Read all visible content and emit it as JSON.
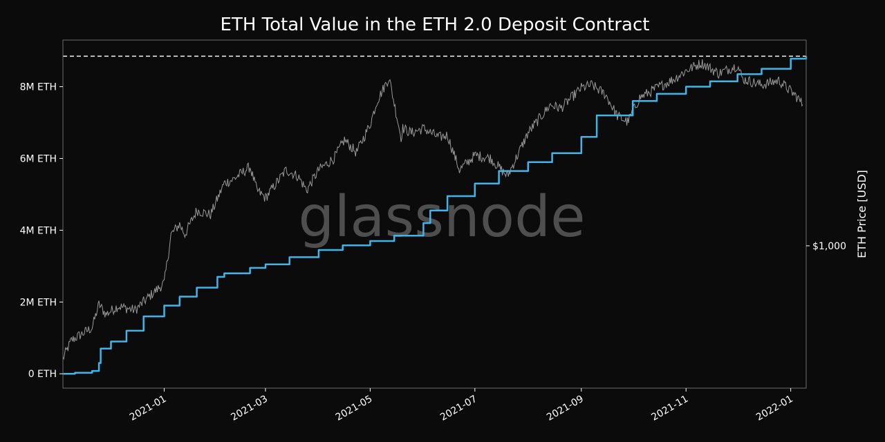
{
  "chart_data": {
    "type": "line",
    "title": "ETH Total Value in the ETH 2.0 Deposit Contract",
    "watermark": "glassnode",
    "x_tick_labels": [
      "2021-01",
      "2021-03",
      "2021-05",
      "2021-07",
      "2021-09",
      "2021-11",
      "2022-01"
    ],
    "x_range": [
      "2020-11-03",
      "2022-01-10"
    ],
    "y_left": {
      "range": [
        -400000,
        9300000
      ],
      "ticks": [
        0,
        2000000,
        4000000,
        6000000,
        8000000
      ],
      "tick_labels": [
        "0 ETH",
        "2M ETH",
        "4M ETH",
        "6M ETH",
        "8M ETH"
      ]
    },
    "y_right": {
      "label": "ETH Price [USD]",
      "scale": "log",
      "range": [
        300,
        5700
      ],
      "ticks": [
        1000
      ],
      "tick_labels": [
        "$1,000"
      ]
    },
    "reference_line": {
      "value": 8850000,
      "style": "dashed",
      "color": "#ffffff"
    },
    "grid": false,
    "series": [
      {
        "axis": "left",
        "color": "#3fb6ea",
        "x": [
          "2020-11-03",
          "2020-11-10",
          "2020-11-20",
          "2020-11-24",
          "2020-11-25",
          "2020-12-01",
          "2020-12-10",
          "2020-12-20",
          "2021-01-01",
          "2021-01-10",
          "2021-01-20",
          "2021-02-01",
          "2021-02-05",
          "2021-02-20",
          "2021-03-01",
          "2021-03-15",
          "2021-04-01",
          "2021-04-15",
          "2021-05-01",
          "2021-05-15",
          "2021-06-01",
          "2021-06-05",
          "2021-06-15",
          "2021-07-01",
          "2021-07-15",
          "2021-08-01",
          "2021-08-15",
          "2021-09-01",
          "2021-09-10",
          "2021-10-01",
          "2021-10-15",
          "2021-11-01",
          "2021-11-15",
          "2021-12-01",
          "2021-12-15",
          "2022-01-01",
          "2022-01-10"
        ],
        "values": [
          0,
          30000,
          80000,
          300000,
          700000,
          900000,
          1200000,
          1600000,
          1900000,
          2150000,
          2400000,
          2700000,
          2800000,
          2950000,
          3050000,
          3250000,
          3450000,
          3580000,
          3700000,
          3850000,
          4200000,
          4550000,
          4950000,
          5300000,
          5650000,
          5900000,
          6150000,
          6600000,
          7200000,
          7600000,
          7800000,
          8000000,
          8150000,
          8350000,
          8500000,
          8780000,
          8850000
        ]
      },
      {
        "axis": "right",
        "color": "#9a9a9a",
        "x": [
          "2020-11-03",
          "2020-11-08",
          "2020-11-20",
          "2020-11-24",
          "2020-11-28",
          "2020-12-05",
          "2020-12-15",
          "2020-12-22",
          "2021-01-01",
          "2021-01-05",
          "2021-01-10",
          "2021-01-13",
          "2021-01-20",
          "2021-01-28",
          "2021-02-05",
          "2021-02-10",
          "2021-02-20",
          "2021-02-24",
          "2021-03-01",
          "2021-03-13",
          "2021-03-20",
          "2021-03-25",
          "2021-04-01",
          "2021-04-10",
          "2021-04-16",
          "2021-04-23",
          "2021-05-01",
          "2021-05-05",
          "2021-05-12",
          "2021-05-19",
          "2021-05-20",
          "2021-05-25",
          "2021-06-01",
          "2021-06-10",
          "2021-06-15",
          "2021-06-22",
          "2021-07-01",
          "2021-07-10",
          "2021-07-20",
          "2021-08-01",
          "2021-08-14",
          "2021-08-20",
          "2021-09-01",
          "2021-09-07",
          "2021-09-15",
          "2021-09-22",
          "2021-09-28",
          "2021-10-05",
          "2021-10-15",
          "2021-10-25",
          "2021-11-01",
          "2021-11-10",
          "2021-11-20",
          "2021-12-01",
          "2021-12-04",
          "2021-12-15",
          "2021-12-25",
          "2022-01-01",
          "2022-01-05",
          "2022-01-08"
        ],
        "values": [
          385,
          450,
          500,
          610,
          560,
          600,
          580,
          640,
          730,
          1100,
          1200,
          1100,
          1350,
          1300,
          1700,
          1750,
          1950,
          1600,
          1500,
          1900,
          1800,
          1600,
          1900,
          2100,
          2450,
          2200,
          2800,
          3400,
          4150,
          2500,
          2700,
          2600,
          2700,
          2500,
          2550,
          1900,
          2150,
          2100,
          1800,
          2600,
          3300,
          3200,
          3800,
          3900,
          3600,
          3000,
          2850,
          3500,
          3800,
          4100,
          4400,
          4700,
          4300,
          4600,
          4100,
          3900,
          4050,
          3700,
          3500,
          3300
        ]
      }
    ]
  }
}
